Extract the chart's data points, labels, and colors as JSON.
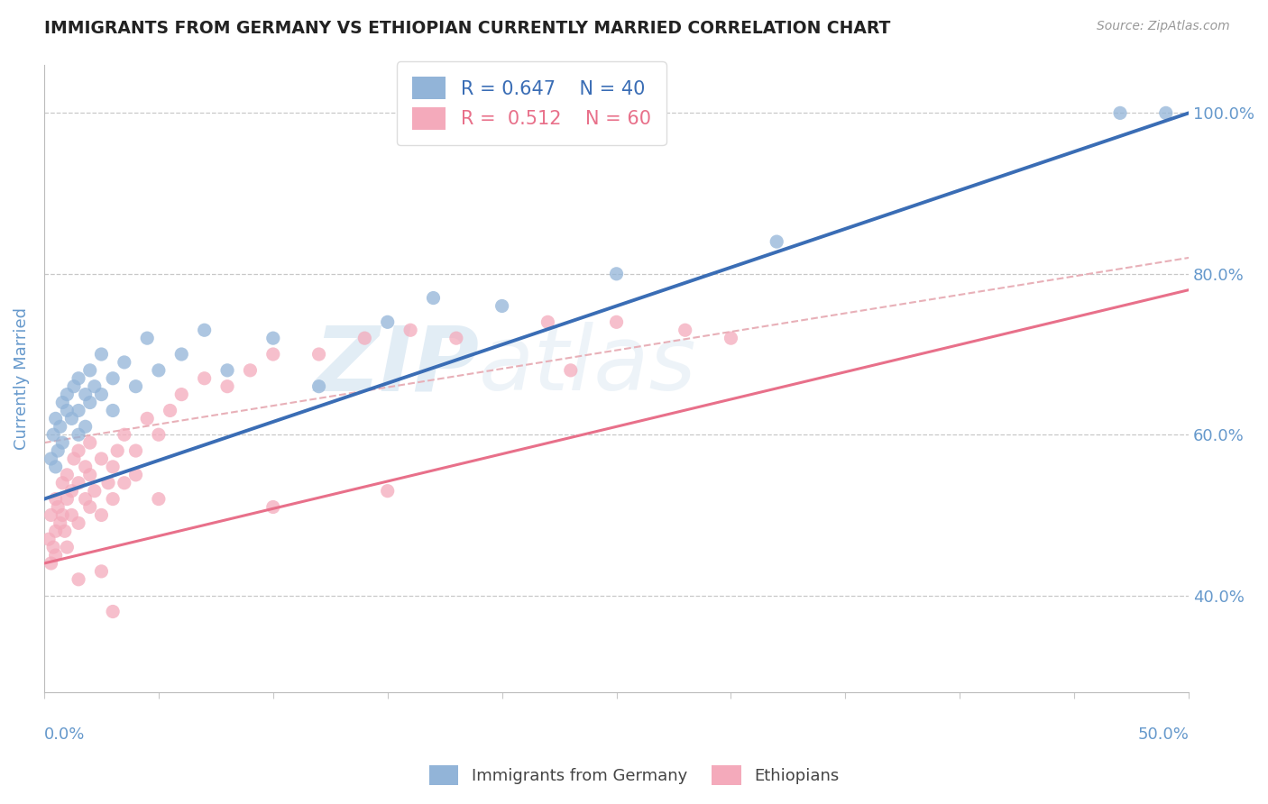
{
  "title": "IMMIGRANTS FROM GERMANY VS ETHIOPIAN CURRENTLY MARRIED CORRELATION CHART",
  "source": "Source: ZipAtlas.com",
  "ylabel": "Currently Married",
  "xlim": [
    0.0,
    50.0
  ],
  "ylim": [
    28.0,
    106.0
  ],
  "yticks": [
    40.0,
    60.0,
    80.0,
    100.0
  ],
  "ytick_labels": [
    "40.0%",
    "60.0%",
    "80.0%",
    "100.0%"
  ],
  "blue_R": 0.647,
  "blue_N": 40,
  "pink_R": 0.512,
  "pink_N": 60,
  "blue_color": "#92B4D8",
  "pink_color": "#F4AABB",
  "blue_line_color": "#3A6DB5",
  "pink_line_color": "#E8708A",
  "gray_dash_color": "#E8B0B8",
  "legend_label_blue": "Immigrants from Germany",
  "legend_label_pink": "Ethiopians",
  "watermark_left": "ZIP",
  "watermark_right": "atlas",
  "blue_trend_x0": 0.0,
  "blue_trend_y0": 52.0,
  "blue_trend_x1": 50.0,
  "blue_trend_y1": 100.0,
  "pink_trend_x0": 0.0,
  "pink_trend_y0": 44.0,
  "pink_trend_x1": 50.0,
  "pink_trend_y1": 78.0,
  "gray_dash_x0": 0.0,
  "gray_dash_y0": 59.0,
  "gray_dash_x1": 50.0,
  "gray_dash_y1": 82.0,
  "blue_scatter_x": [
    0.3,
    0.4,
    0.5,
    0.5,
    0.6,
    0.7,
    0.8,
    0.8,
    1.0,
    1.0,
    1.2,
    1.3,
    1.5,
    1.5,
    1.5,
    1.8,
    1.8,
    2.0,
    2.0,
    2.2,
    2.5,
    2.5,
    3.0,
    3.0,
    3.5,
    4.0,
    4.5,
    5.0,
    6.0,
    7.0,
    8.0,
    10.0,
    12.0,
    15.0,
    17.0,
    20.0,
    25.0,
    32.0,
    47.0,
    49.0
  ],
  "blue_scatter_y": [
    57,
    60,
    56,
    62,
    58,
    61,
    59,
    64,
    63,
    65,
    62,
    66,
    60,
    63,
    67,
    65,
    61,
    64,
    68,
    66,
    65,
    70,
    67,
    63,
    69,
    66,
    72,
    68,
    70,
    73,
    68,
    72,
    66,
    74,
    77,
    76,
    80,
    84,
    100,
    100
  ],
  "pink_scatter_x": [
    0.2,
    0.3,
    0.3,
    0.4,
    0.5,
    0.5,
    0.5,
    0.6,
    0.7,
    0.8,
    0.8,
    0.9,
    1.0,
    1.0,
    1.0,
    1.2,
    1.2,
    1.3,
    1.5,
    1.5,
    1.5,
    1.8,
    1.8,
    2.0,
    2.0,
    2.0,
    2.2,
    2.5,
    2.5,
    2.8,
    3.0,
    3.0,
    3.2,
    3.5,
    3.5,
    4.0,
    4.0,
    4.5,
    5.0,
    5.5,
    6.0,
    7.0,
    8.0,
    9.0,
    10.0,
    12.0,
    14.0,
    16.0,
    18.0,
    22.0,
    25.0,
    28.0,
    30.0,
    2.5,
    1.5,
    3.0,
    5.0,
    15.0,
    23.0,
    10.0
  ],
  "pink_scatter_y": [
    47,
    44,
    50,
    46,
    48,
    52,
    45,
    51,
    49,
    50,
    54,
    48,
    52,
    46,
    55,
    50,
    53,
    57,
    49,
    54,
    58,
    52,
    56,
    51,
    55,
    59,
    53,
    57,
    50,
    54,
    56,
    52,
    58,
    54,
    60,
    55,
    58,
    62,
    60,
    63,
    65,
    67,
    66,
    68,
    70,
    70,
    72,
    73,
    72,
    74,
    74,
    73,
    72,
    43,
    42,
    38,
    52,
    53,
    68,
    51
  ],
  "background_color": "#FFFFFF",
  "grid_color": "#C8C8C8",
  "axis_color": "#6699CC",
  "title_color": "#222222"
}
